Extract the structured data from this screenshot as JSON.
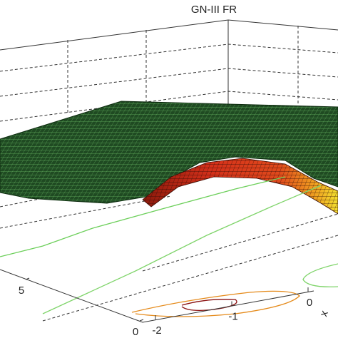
{
  "chart_data": {
    "type": "surface",
    "title": "GN-III FR",
    "xlabel": "x",
    "xlim": [
      -2,
      0
    ],
    "xticks": [
      -2,
      -1,
      0
    ],
    "ylim": [
      0,
      5
    ],
    "yticks": [
      0,
      5
    ]
  }
}
